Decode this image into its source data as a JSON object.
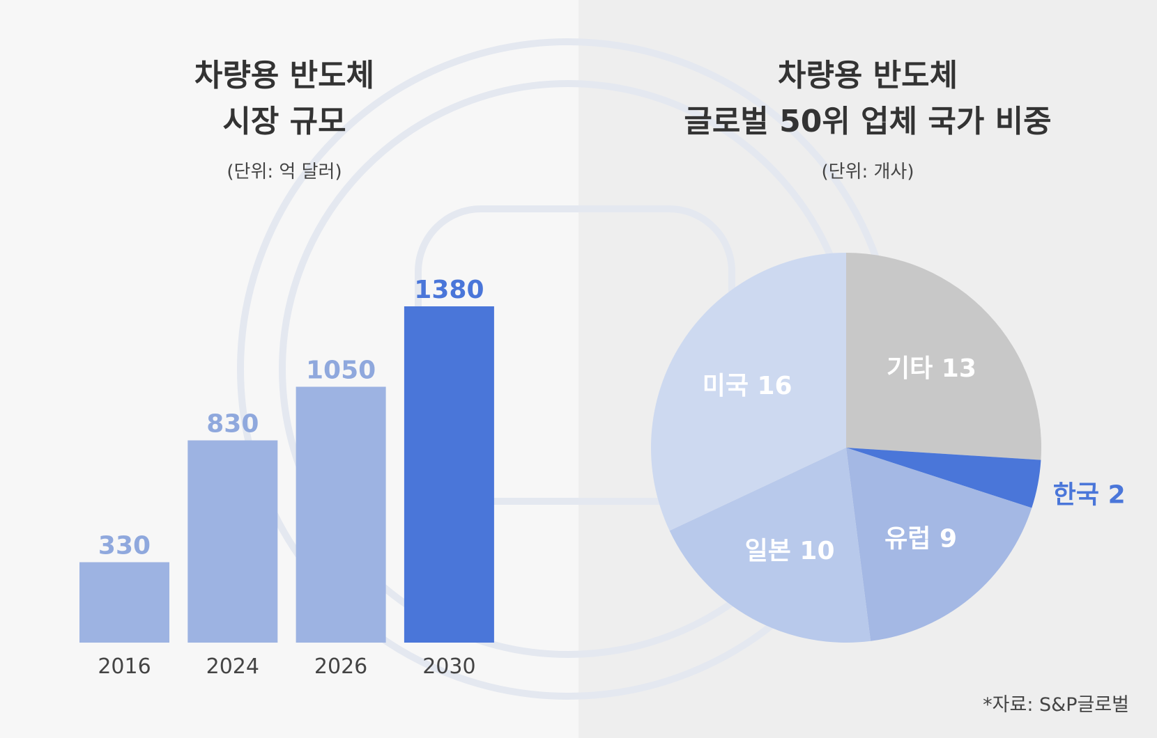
{
  "colors": {
    "bar_light": "#9db3e2",
    "bar_highlight": "#4a76d9",
    "label_light": "#8fa8dd"
  },
  "chart_data": [
    {
      "type": "bar",
      "title": "차량용 반도체 시장 규모",
      "title_lines": [
        "차량용 반도체",
        "시장 규모"
      ],
      "subtitle": "(단위: 억 달러)",
      "categories": [
        "2016",
        "2024",
        "2026",
        "2030"
      ],
      "values": [
        330,
        830,
        1050,
        1380
      ],
      "highlight": "2030",
      "grid": false
    },
    {
      "type": "pie",
      "title": "차량용 반도체 글로벌 50위 업체 국가 비중",
      "title_lines": [
        "차량용 반도체",
        "글로벌 50위 업체 국가 비중"
      ],
      "subtitle": "(단위: 개사)",
      "slices": [
        {
          "label": "기타",
          "value": 13,
          "color": "#c8c8c8"
        },
        {
          "label": "한국",
          "value": 2,
          "color": "#4a76d9"
        },
        {
          "label": "유럽",
          "value": 9,
          "color": "#a4b8e4"
        },
        {
          "label": "일본",
          "value": 10,
          "color": "#b8c9eb"
        },
        {
          "label": "미국",
          "value": 16,
          "color": "#cdd9f0"
        }
      ]
    }
  ],
  "source": "*자료: S&P글로벌"
}
